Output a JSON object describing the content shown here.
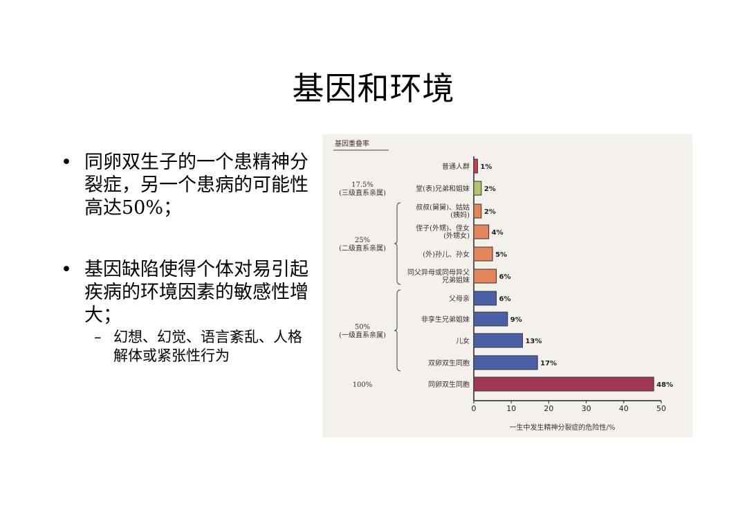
{
  "slide": {
    "title": "基因和环境",
    "bullets": [
      {
        "text": "同卵双生子的一个患精神分裂症，另一个患病的可能性高达50%；"
      },
      {
        "text": "基因缺陷使得个体对易引起疾病的环境因素的敏感性增大；",
        "sub": "幻想、幻觉、语言紊乱、人格解体或紧张性行为"
      }
    ],
    "bullet_symbol": "•",
    "sub_symbol": "–"
  },
  "chart_data": {
    "type": "bar",
    "orientation": "horizontal",
    "title": "基因重叠率",
    "xlabel": "一生中发生精神分裂症的危险性/%",
    "xlim": [
      0,
      50
    ],
    "xticks": [
      "0",
      "10",
      "20",
      "30",
      "40",
      "50"
    ],
    "categories": [
      "普通人群",
      "堂(表)兄弟和姐妹",
      "叔叔(舅舅)、姑姑(姨妈)",
      "侄子(外甥)、侄女(外甥女)",
      "(外)孙儿、孙女",
      "同父异母或同母异父兄弟姐妹",
      "父母亲",
      "非孪生兄弟姐妹",
      "儿女",
      "双卵双生同胞",
      "同卵双生同胞"
    ],
    "values": [
      1,
      2,
      2,
      4,
      5,
      6,
      6,
      9,
      13,
      17,
      48
    ],
    "value_labels": [
      "1%",
      "2%",
      "2%",
      "4%",
      "5%",
      "6%",
      "6%",
      "9%",
      "13%",
      "17%",
      "48%"
    ],
    "colors": [
      "#d83a4a",
      "#b3c46a",
      "#e3845a",
      "#e3845a",
      "#e3845a",
      "#e3845a",
      "#4a5fa6",
      "#4a5fa6",
      "#4a5fa6",
      "#4a5fa6",
      "#a33756"
    ],
    "groups": [
      {
        "overlap": "17.5%",
        "relation": "(三级直系亲属)",
        "first": 1,
        "last": 1
      },
      {
        "overlap": "25%",
        "relation": "(二级直系亲属)",
        "first": 2,
        "last": 5
      },
      {
        "overlap": "50%",
        "relation": "(一级直系亲属)",
        "first": 6,
        "last": 9
      },
      {
        "overlap": "100%",
        "relation": "",
        "first": 10,
        "last": 10
      }
    ],
    "grid": false,
    "legend": "none"
  }
}
